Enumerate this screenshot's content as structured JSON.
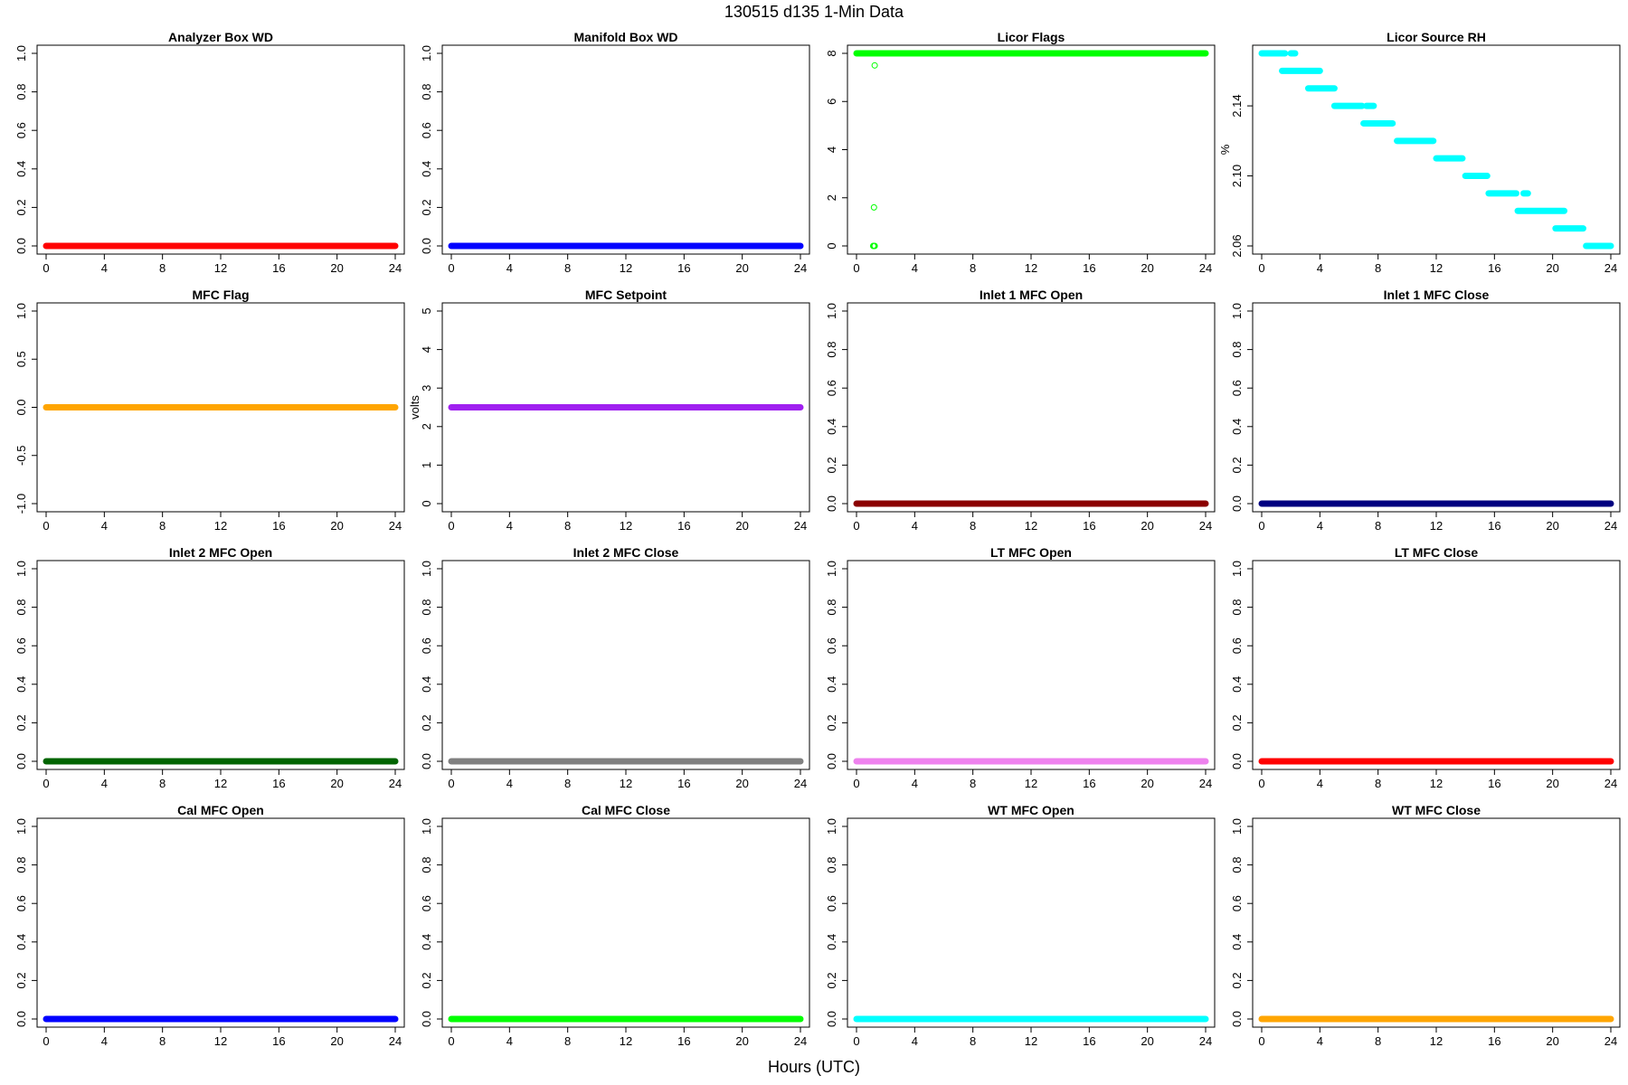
{
  "figure": {
    "title": "130515   d135   1-Min Data",
    "xlabel": "Hours (UTC)"
  },
  "chart_data": [
    {
      "type": "scatter",
      "title": "Analyzer Box WD",
      "ylabel": "",
      "xlim": [
        0,
        24
      ],
      "ylim": [
        0,
        1
      ],
      "xticks": [
        "0",
        "4",
        "8",
        "12",
        "16",
        "20",
        "24"
      ],
      "yticks": [
        "0.0",
        "0.2",
        "0.4",
        "0.6",
        "0.8",
        "1.0"
      ],
      "color": "#ff0000",
      "series": [
        {
          "x": [
            0,
            24
          ],
          "y": [
            0,
            0
          ],
          "style": "dense"
        }
      ]
    },
    {
      "type": "scatter",
      "title": "Manifold Box WD",
      "ylabel": "",
      "xlim": [
        0,
        24
      ],
      "ylim": [
        0,
        1
      ],
      "xticks": [
        "0",
        "4",
        "8",
        "12",
        "16",
        "20",
        "24"
      ],
      "yticks": [
        "0.0",
        "0.2",
        "0.4",
        "0.6",
        "0.8",
        "1.0"
      ],
      "color": "#0000ff",
      "series": [
        {
          "x": [
            0,
            24
          ],
          "y": [
            0,
            0
          ],
          "style": "dense"
        }
      ]
    },
    {
      "type": "scatter",
      "title": "Licor Flags",
      "ylabel": "",
      "xlim": [
        0,
        24
      ],
      "ylim": [
        0,
        8
      ],
      "xticks": [
        "0",
        "4",
        "8",
        "12",
        "16",
        "20",
        "24"
      ],
      "yticks": [
        "0",
        "2",
        "4",
        "6",
        "8"
      ],
      "color": "#00ff00",
      "series": [
        {
          "x": [
            0,
            24
          ],
          "y": [
            8,
            8
          ],
          "style": "dense"
        },
        {
          "x": [
            1.25,
            1.2,
            1.15,
            1.2,
            1.25
          ],
          "y": [
            7.5,
            1.6,
            0,
            0,
            0
          ],
          "style": "points"
        }
      ]
    },
    {
      "type": "scatter",
      "title": "Licor Source RH",
      "ylabel": "%",
      "xlim": [
        0,
        24
      ],
      "ylim": [
        2.06,
        2.17
      ],
      "xticks": [
        "0",
        "4",
        "8",
        "12",
        "16",
        "20",
        "24"
      ],
      "yticks": [
        "2.06",
        "2.10",
        "2.14"
      ],
      "color": "#00ffff",
      "series": [
        {
          "style": "segments",
          "segments": [
            {
              "x0": 0,
              "x1": 1.6,
              "y": 2.17
            },
            {
              "x0": 2.0,
              "x1": 2.3,
              "y": 2.17
            },
            {
              "x0": 1.4,
              "x1": 4.0,
              "y": 2.16
            },
            {
              "x0": 3.2,
              "x1": 5.0,
              "y": 2.15
            },
            {
              "x0": 5.0,
              "x1": 6.9,
              "y": 2.14
            },
            {
              "x0": 7.2,
              "x1": 7.7,
              "y": 2.14
            },
            {
              "x0": 7.0,
              "x1": 9.0,
              "y": 2.13
            },
            {
              "x0": 9.3,
              "x1": 11.8,
              "y": 2.12
            },
            {
              "x0": 12.0,
              "x1": 13.8,
              "y": 2.11
            },
            {
              "x0": 14.0,
              "x1": 15.5,
              "y": 2.1
            },
            {
              "x0": 15.6,
              "x1": 17.5,
              "y": 2.09
            },
            {
              "x0": 18.0,
              "x1": 18.3,
              "y": 2.09
            },
            {
              "x0": 17.6,
              "x1": 20.8,
              "y": 2.08
            },
            {
              "x0": 20.2,
              "x1": 22.1,
              "y": 2.07
            },
            {
              "x0": 22.3,
              "x1": 24,
              "y": 2.06
            }
          ]
        }
      ]
    },
    {
      "type": "scatter",
      "title": "MFC Flag",
      "ylabel": "",
      "xlim": [
        0,
        24
      ],
      "ylim": [
        -1,
        1
      ],
      "xticks": [
        "0",
        "4",
        "8",
        "12",
        "16",
        "20",
        "24"
      ],
      "yticks": [
        "-1.0",
        "-0.5",
        "0.0",
        "0.5",
        "1.0"
      ],
      "color": "#ffa500",
      "series": [
        {
          "x": [
            0,
            24
          ],
          "y": [
            0,
            0
          ],
          "style": "dense"
        }
      ]
    },
    {
      "type": "scatter",
      "title": "MFC Setpoint",
      "ylabel": "volts",
      "xlim": [
        0,
        24
      ],
      "ylim": [
        0,
        5
      ],
      "xticks": [
        "0",
        "4",
        "8",
        "12",
        "16",
        "20",
        "24"
      ],
      "yticks": [
        "0",
        "1",
        "2",
        "3",
        "4",
        "5"
      ],
      "color": "#a020f0",
      "series": [
        {
          "x": [
            0,
            24
          ],
          "y": [
            2.5,
            2.5
          ],
          "style": "dense"
        }
      ]
    },
    {
      "type": "scatter",
      "title": "Inlet 1 MFC Open",
      "ylabel": "",
      "xlim": [
        0,
        24
      ],
      "ylim": [
        0,
        1
      ],
      "xticks": [
        "0",
        "4",
        "8",
        "12",
        "16",
        "20",
        "24"
      ],
      "yticks": [
        "0.0",
        "0.2",
        "0.4",
        "0.6",
        "0.8",
        "1.0"
      ],
      "color": "#8b0000",
      "series": [
        {
          "x": [
            0,
            24
          ],
          "y": [
            0,
            0
          ],
          "style": "dense"
        }
      ]
    },
    {
      "type": "scatter",
      "title": "Inlet 1 MFC Close",
      "ylabel": "",
      "xlim": [
        0,
        24
      ],
      "ylim": [
        0,
        1
      ],
      "xticks": [
        "0",
        "4",
        "8",
        "12",
        "16",
        "20",
        "24"
      ],
      "yticks": [
        "0.0",
        "0.2",
        "0.4",
        "0.6",
        "0.8",
        "1.0"
      ],
      "color": "#000080",
      "series": [
        {
          "x": [
            0,
            24
          ],
          "y": [
            0,
            0
          ],
          "style": "dense"
        }
      ]
    },
    {
      "type": "scatter",
      "title": "Inlet 2 MFC Open",
      "ylabel": "",
      "xlim": [
        0,
        24
      ],
      "ylim": [
        0,
        1
      ],
      "xticks": [
        "0",
        "4",
        "8",
        "12",
        "16",
        "20",
        "24"
      ],
      "yticks": [
        "0.0",
        "0.2",
        "0.4",
        "0.6",
        "0.8",
        "1.0"
      ],
      "color": "#006400",
      "series": [
        {
          "x": [
            0,
            24
          ],
          "y": [
            0,
            0
          ],
          "style": "dense"
        }
      ]
    },
    {
      "type": "scatter",
      "title": "Inlet 2 MFC Close",
      "ylabel": "",
      "xlim": [
        0,
        24
      ],
      "ylim": [
        0,
        1
      ],
      "xticks": [
        "0",
        "4",
        "8",
        "12",
        "16",
        "20",
        "24"
      ],
      "yticks": [
        "0.0",
        "0.2",
        "0.4",
        "0.6",
        "0.8",
        "1.0"
      ],
      "color": "#808080",
      "series": [
        {
          "x": [
            0,
            24
          ],
          "y": [
            0,
            0
          ],
          "style": "dense"
        }
      ]
    },
    {
      "type": "scatter",
      "title": "LT MFC Open",
      "ylabel": "",
      "xlim": [
        0,
        24
      ],
      "ylim": [
        0,
        1
      ],
      "xticks": [
        "0",
        "4",
        "8",
        "12",
        "16",
        "20",
        "24"
      ],
      "yticks": [
        "0.0",
        "0.2",
        "0.4",
        "0.6",
        "0.8",
        "1.0"
      ],
      "color": "#ee82ee",
      "series": [
        {
          "x": [
            0,
            24
          ],
          "y": [
            0,
            0
          ],
          "style": "dense"
        }
      ]
    },
    {
      "type": "scatter",
      "title": "LT MFC Close",
      "ylabel": "",
      "xlim": [
        0,
        24
      ],
      "ylim": [
        0,
        1
      ],
      "xticks": [
        "0",
        "4",
        "8",
        "12",
        "16",
        "20",
        "24"
      ],
      "yticks": [
        "0.0",
        "0.2",
        "0.4",
        "0.6",
        "0.8",
        "1.0"
      ],
      "color": "#ff0000",
      "series": [
        {
          "x": [
            0,
            24
          ],
          "y": [
            0,
            0
          ],
          "style": "dense"
        }
      ]
    },
    {
      "type": "scatter",
      "title": "Cal MFC Open",
      "ylabel": "",
      "xlim": [
        0,
        24
      ],
      "ylim": [
        0,
        1
      ],
      "xticks": [
        "0",
        "4",
        "8",
        "12",
        "16",
        "20",
        "24"
      ],
      "yticks": [
        "0.0",
        "0.2",
        "0.4",
        "0.6",
        "0.8",
        "1.0"
      ],
      "color": "#0000ff",
      "series": [
        {
          "x": [
            0,
            24
          ],
          "y": [
            0,
            0
          ],
          "style": "dense"
        }
      ]
    },
    {
      "type": "scatter",
      "title": "Cal MFC Close",
      "ylabel": "",
      "xlim": [
        0,
        24
      ],
      "ylim": [
        0,
        1
      ],
      "xticks": [
        "0",
        "4",
        "8",
        "12",
        "16",
        "20",
        "24"
      ],
      "yticks": [
        "0.0",
        "0.2",
        "0.4",
        "0.6",
        "0.8",
        "1.0"
      ],
      "color": "#00ff00",
      "series": [
        {
          "x": [
            0,
            24
          ],
          "y": [
            0,
            0
          ],
          "style": "dense"
        }
      ]
    },
    {
      "type": "scatter",
      "title": "WT MFC Open",
      "ylabel": "",
      "xlim": [
        0,
        24
      ],
      "ylim": [
        0,
        1
      ],
      "xticks": [
        "0",
        "4",
        "8",
        "12",
        "16",
        "20",
        "24"
      ],
      "yticks": [
        "0.0",
        "0.2",
        "0.4",
        "0.6",
        "0.8",
        "1.0"
      ],
      "color": "#00ffff",
      "series": [
        {
          "x": [
            0,
            24
          ],
          "y": [
            0,
            0
          ],
          "style": "dense"
        }
      ]
    },
    {
      "type": "scatter",
      "title": "WT MFC Close",
      "ylabel": "",
      "xlim": [
        0,
        24
      ],
      "ylim": [
        0,
        1
      ],
      "xticks": [
        "0",
        "4",
        "8",
        "12",
        "16",
        "20",
        "24"
      ],
      "yticks": [
        "0.0",
        "0.2",
        "0.4",
        "0.6",
        "0.8",
        "1.0"
      ],
      "color": "#ffa500",
      "series": [
        {
          "x": [
            0,
            24
          ],
          "y": [
            0,
            0
          ],
          "style": "dense"
        }
      ]
    }
  ]
}
